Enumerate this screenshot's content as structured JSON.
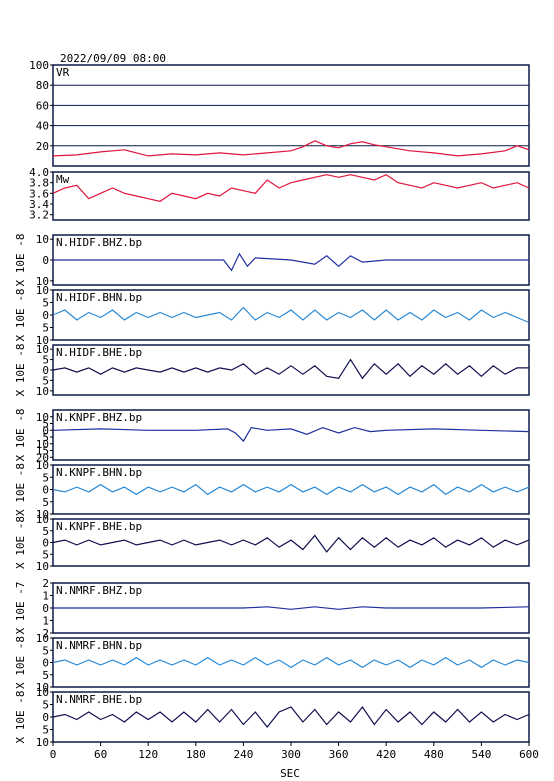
{
  "header": {
    "timestamp": "2022/09/09 08:00"
  },
  "chart_data": {
    "type": "line",
    "xlabel": "SEC",
    "xlim": [
      0,
      600
    ],
    "xticks": [
      0,
      60,
      120,
      180,
      240,
      300,
      360,
      420,
      480,
      540,
      600
    ],
    "panels": [
      {
        "name": "VR",
        "ylim": [
          0,
          100
        ],
        "yticks": [
          20,
          40,
          60,
          80,
          100
        ],
        "yticklabels": [
          "20",
          "40",
          "60",
          "80",
          "100"
        ],
        "color": "#e0143c",
        "grid": true,
        "ylabel": "",
        "x": [
          0,
          30,
          60,
          90,
          120,
          150,
          180,
          210,
          240,
          270,
          300,
          315,
          330,
          345,
          360,
          375,
          390,
          405,
          420,
          450,
          480,
          510,
          540,
          570,
          585,
          600
        ],
        "y": [
          10,
          11,
          14,
          16,
          10,
          12,
          11,
          13,
          11,
          13,
          15,
          19,
          25,
          20,
          18,
          22,
          24,
          21,
          19,
          15,
          13,
          10,
          12,
          15,
          20,
          16
        ]
      },
      {
        "name": "Mw",
        "ylim": [
          3.1,
          4.0
        ],
        "yticks": [
          3.2,
          3.4,
          3.6,
          3.8,
          4.0
        ],
        "yticklabels": [
          "3.2",
          "3.4",
          "3.6",
          "3.8",
          "4.0"
        ],
        "color": "#e0143c",
        "grid": false,
        "ylabel": "",
        "x": [
          0,
          15,
          30,
          45,
          60,
          75,
          90,
          105,
          120,
          135,
          150,
          165,
          180,
          195,
          210,
          225,
          240,
          255,
          270,
          285,
          300,
          315,
          330,
          345,
          360,
          375,
          390,
          405,
          420,
          435,
          450,
          465,
          480,
          495,
          510,
          525,
          540,
          555,
          570,
          585,
          600
        ],
        "y": [
          3.6,
          3.7,
          3.75,
          3.5,
          3.6,
          3.7,
          3.6,
          3.55,
          3.5,
          3.45,
          3.6,
          3.55,
          3.5,
          3.6,
          3.55,
          3.7,
          3.65,
          3.6,
          3.85,
          3.7,
          3.8,
          3.85,
          3.9,
          3.95,
          3.9,
          3.95,
          3.9,
          3.85,
          3.95,
          3.8,
          3.75,
          3.7,
          3.8,
          3.75,
          3.7,
          3.75,
          3.8,
          3.7,
          3.75,
          3.8,
          3.7
        ]
      },
      {
        "name": "N.HIDF.BHZ.bp",
        "ylim": [
          -12,
          12
        ],
        "yticks": [
          -10,
          0,
          10
        ],
        "yticklabels": [
          "10",
          "0",
          "10"
        ],
        "color": "#1e2fa0",
        "grid": false,
        "ylabel": "X 10E -8",
        "x": [
          0,
          60,
          120,
          180,
          215,
          225,
          235,
          245,
          255,
          300,
          330,
          345,
          360,
          375,
          390,
          420,
          480,
          540,
          600
        ],
        "y": [
          0,
          0,
          0,
          0,
          0,
          -5,
          3,
          -3,
          1,
          0,
          -2,
          2,
          -3,
          2,
          -1,
          0,
          0,
          0,
          0
        ]
      },
      {
        "name": "N.HIDF.BHN.bp",
        "ylim": [
          -10,
          10
        ],
        "yticks": [
          -10,
          -5,
          0,
          5,
          10
        ],
        "yticklabels": [
          "10",
          "5",
          "0",
          "5",
          "10"
        ],
        "color": "#2a8ad6",
        "grid": false,
        "ylabel": "X 10E -8",
        "x": [
          0,
          15,
          30,
          45,
          60,
          75,
          90,
          105,
          120,
          135,
          150,
          165,
          180,
          195,
          210,
          225,
          240,
          255,
          270,
          285,
          300,
          315,
          330,
          345,
          360,
          375,
          390,
          405,
          420,
          435,
          450,
          465,
          480,
          495,
          510,
          525,
          540,
          555,
          570,
          585,
          600
        ],
        "y": [
          0,
          2,
          -2,
          1,
          -1,
          2,
          -2,
          1,
          -1,
          1,
          -1,
          1,
          -1,
          0,
          1,
          -2,
          3,
          -2,
          1,
          -1,
          2,
          -2,
          2,
          -2,
          1,
          -1,
          2,
          -2,
          2,
          -2,
          1,
          -2,
          2,
          -1,
          1,
          -2,
          2,
          -1,
          1,
          -1,
          -3
        ]
      },
      {
        "name": "N.HIDF.BHE.bp",
        "ylim": [
          -12,
          12
        ],
        "yticks": [
          -10,
          -5,
          0,
          5,
          10
        ],
        "yticklabels": [
          "10",
          "5",
          "0",
          "5",
          "10"
        ],
        "color": "#101050",
        "grid": false,
        "ylabel": "X 10E -8",
        "x": [
          0,
          15,
          30,
          45,
          60,
          75,
          90,
          105,
          120,
          135,
          150,
          165,
          180,
          195,
          210,
          225,
          240,
          255,
          270,
          285,
          300,
          315,
          330,
          345,
          360,
          375,
          390,
          405,
          420,
          435,
          450,
          465,
          480,
          495,
          510,
          525,
          540,
          555,
          570,
          585,
          600
        ],
        "y": [
          0,
          1,
          -1,
          1,
          -2,
          1,
          -1,
          1,
          0,
          -1,
          1,
          -1,
          1,
          -1,
          1,
          0,
          3,
          -2,
          1,
          -2,
          2,
          -2,
          2,
          -3,
          -4,
          5,
          -4,
          3,
          -2,
          3,
          -3,
          2,
          -2,
          3,
          -2,
          2,
          -3,
          2,
          -2,
          1,
          1
        ]
      },
      {
        "name": "N.KNPF.BHZ.bp",
        "ylim": [
          -22,
          15
        ],
        "yticks": [
          -20,
          -15,
          -10,
          -5,
          0,
          5,
          10
        ],
        "yticklabels": [
          "20",
          "15",
          "10",
          "5",
          "0",
          "5",
          "10"
        ],
        "color": "#1e2fa0",
        "grid": false,
        "ylabel": "X 10E -8",
        "x": [
          0,
          60,
          120,
          180,
          220,
          230,
          240,
          250,
          270,
          300,
          320,
          340,
          360,
          380,
          400,
          420,
          480,
          540,
          600
        ],
        "y": [
          0,
          1,
          0,
          0,
          1,
          -2,
          -8,
          2,
          0,
          1,
          -3,
          2,
          -2,
          2,
          -1,
          0,
          1,
          0,
          -1
        ]
      },
      {
        "name": "N.KNPF.BHN.bp",
        "ylim": [
          -10,
          10
        ],
        "yticks": [
          -10,
          -5,
          0,
          5,
          10
        ],
        "yticklabels": [
          "10",
          "5",
          "0",
          "5",
          "10"
        ],
        "color": "#2a8ad6",
        "grid": false,
        "ylabel": "X 10E -8",
        "x": [
          0,
          15,
          30,
          45,
          60,
          75,
          90,
          105,
          120,
          135,
          150,
          165,
          180,
          195,
          210,
          225,
          240,
          255,
          270,
          285,
          300,
          315,
          330,
          345,
          360,
          375,
          390,
          405,
          420,
          435,
          450,
          465,
          480,
          495,
          510,
          525,
          540,
          555,
          570,
          585,
          600
        ],
        "y": [
          0,
          -1,
          1,
          -1,
          2,
          -1,
          1,
          -2,
          1,
          -1,
          1,
          -1,
          2,
          -2,
          1,
          -1,
          2,
          -1,
          1,
          -1,
          2,
          -1,
          1,
          -2,
          1,
          -1,
          2,
          -1,
          1,
          -2,
          1,
          -1,
          2,
          -2,
          1,
          -1,
          2,
          -1,
          1,
          -1,
          1
        ]
      },
      {
        "name": "N.KNPF.BHE.bp",
        "ylim": [
          -10,
          10
        ],
        "yticks": [
          -10,
          -5,
          0,
          5,
          10
        ],
        "yticklabels": [
          "10",
          "5",
          "0",
          "5",
          "10"
        ],
        "color": "#101050",
        "grid": false,
        "ylabel": "X 10E -8",
        "x": [
          0,
          15,
          30,
          45,
          60,
          75,
          90,
          105,
          120,
          135,
          150,
          165,
          180,
          195,
          210,
          225,
          240,
          255,
          270,
          285,
          300,
          315,
          330,
          345,
          360,
          375,
          390,
          405,
          420,
          435,
          450,
          465,
          480,
          495,
          510,
          525,
          540,
          555,
          570,
          585,
          600
        ],
        "y": [
          0,
          1,
          -1,
          1,
          -1,
          0,
          1,
          -1,
          0,
          1,
          -1,
          1,
          -1,
          0,
          1,
          -1,
          1,
          -1,
          2,
          -2,
          1,
          -3,
          3,
          -4,
          2,
          -3,
          2,
          -2,
          2,
          -2,
          1,
          -1,
          2,
          -2,
          1,
          -1,
          2,
          -2,
          1,
          -1,
          1
        ]
      },
      {
        "name": "N.NMRF.BHZ.bp",
        "ylim": [
          -2,
          2
        ],
        "yticks": [
          -2,
          -1,
          0,
          1,
          2
        ],
        "yticklabels": [
          "2",
          "1",
          "0",
          "1",
          "2"
        ],
        "color": "#1e2fa0",
        "grid": false,
        "ylabel": "X 10E -7",
        "x": [
          0,
          60,
          120,
          180,
          240,
          270,
          300,
          330,
          360,
          390,
          420,
          480,
          540,
          600
        ],
        "y": [
          0,
          0,
          0,
          0,
          0,
          0.1,
          -0.1,
          0.1,
          -0.1,
          0.1,
          0,
          0,
          0,
          0.1
        ]
      },
      {
        "name": "N.NMRF.BHN.bp",
        "ylim": [
          -10,
          10
        ],
        "yticks": [
          -10,
          -5,
          0,
          5,
          10
        ],
        "yticklabels": [
          "10",
          "5",
          "0",
          "5",
          "10"
        ],
        "color": "#2a8ad6",
        "grid": false,
        "ylabel": "X 10E -8",
        "x": [
          0,
          15,
          30,
          45,
          60,
          75,
          90,
          105,
          120,
          135,
          150,
          165,
          180,
          195,
          210,
          225,
          240,
          255,
          270,
          285,
          300,
          315,
          330,
          345,
          360,
          375,
          390,
          405,
          420,
          435,
          450,
          465,
          480,
          495,
          510,
          525,
          540,
          555,
          570,
          585,
          600
        ],
        "y": [
          0,
          1,
          -1,
          1,
          -1,
          1,
          -1,
          2,
          -1,
          1,
          -1,
          1,
          -1,
          2,
          -1,
          1,
          -1,
          2,
          -1,
          1,
          -2,
          1,
          -1,
          2,
          -1,
          1,
          -2,
          1,
          -1,
          1,
          -2,
          1,
          -1,
          2,
          -1,
          1,
          -2,
          1,
          -1,
          1,
          0
        ]
      },
      {
        "name": "N.NMRF.BHE.bp",
        "ylim": [
          -10,
          10
        ],
        "yticks": [
          -10,
          -5,
          0,
          5,
          10
        ],
        "yticklabels": [
          "10",
          "5",
          "0",
          "5",
          "10"
        ],
        "color": "#101050",
        "grid": false,
        "ylabel": "X 10E -8",
        "x": [
          0,
          15,
          30,
          45,
          60,
          75,
          90,
          105,
          120,
          135,
          150,
          165,
          180,
          195,
          210,
          225,
          240,
          255,
          270,
          285,
          300,
          315,
          330,
          345,
          360,
          375,
          390,
          405,
          420,
          435,
          450,
          465,
          480,
          495,
          510,
          525,
          540,
          555,
          570,
          585,
          600
        ],
        "y": [
          0,
          1,
          -1,
          2,
          -1,
          1,
          -2,
          2,
          -1,
          2,
          -2,
          2,
          -2,
          3,
          -2,
          3,
          -3,
          2,
          -4,
          2,
          4,
          -2,
          3,
          -3,
          2,
          -2,
          4,
          -3,
          3,
          -2,
          2,
          -3,
          2,
          -2,
          3,
          -2,
          2,
          -2,
          1,
          -1,
          1
        ]
      }
    ]
  }
}
